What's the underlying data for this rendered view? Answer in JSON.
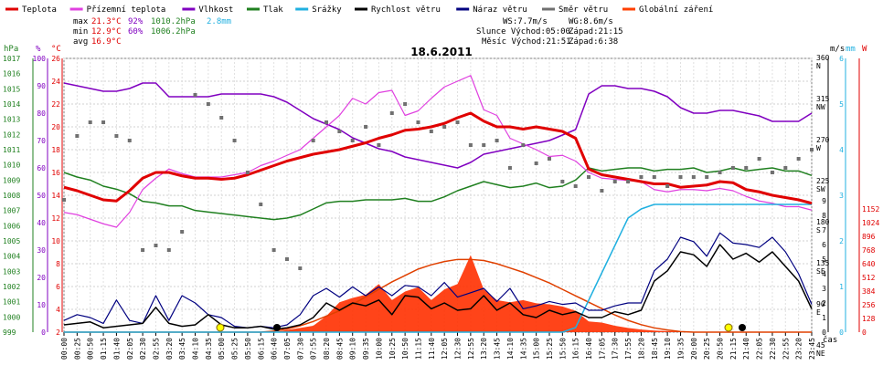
{
  "chart_data": {
    "type": "line",
    "title": "18.6.2011",
    "legend": [
      {
        "label": "Teplota",
        "color": "#e00000"
      },
      {
        "label": "Přízemní teplota",
        "color": "#e040e0"
      },
      {
        "label": "Vlhkost",
        "color": "#8000c0"
      },
      {
        "label": "Tlak",
        "color": "#208020"
      },
      {
        "label": "Srážky",
        "color": "#20b0e0"
      },
      {
        "label": "Rychlost větru",
        "color": "#000000"
      },
      {
        "label": "Náraz větru",
        "color": "#000080"
      },
      {
        "label": "Směr větru",
        "color": "#707070"
      },
      {
        "label": "Globální záření",
        "color": "#ff4000"
      }
    ],
    "stats": {
      "max_label": "max",
      "max_temp": "21.3°C",
      "max_hum": "92%",
      "max_press": "1010.2hPa",
      "rain_total": "2.8mm",
      "min_label": "min",
      "min_temp": "12.9°C",
      "min_hum": "60%",
      "min_press": "1006.2hPa",
      "avg_label": "avg",
      "avg_temp": "16.9°C",
      "ws": "WS:7.7m/s",
      "wg": "WG:8.6m/s",
      "sun": "Slunce Východ:05:00",
      "sun_set": "Západ:21:15",
      "moon": "Měsíc Východ:21:51",
      "moon_set": "Západ:6:38"
    },
    "axis_units": {
      "hpa": "hPa",
      "pct": "%",
      "degc": "°C",
      "ms": "m/s",
      "mm": "mm",
      "w": "W",
      "cas": "čas"
    },
    "ylim_temp": [
      2,
      26
    ],
    "temp_ticks": [
      "26",
      "24",
      "22",
      "20",
      "18",
      "16",
      "14",
      "12",
      "10",
      "8",
      "6",
      "4",
      "2"
    ],
    "hum_ticks": [
      "100",
      "90",
      "80",
      "70",
      "60",
      "50",
      "40",
      "30",
      "20",
      "10",
      "0"
    ],
    "press_ticks": [
      "1017",
      "1016",
      "1015",
      "1014",
      "1013",
      "1012",
      "1011",
      "1010",
      "1009",
      "1008",
      "1007",
      "1006",
      "1005",
      "1004",
      "1003",
      "1002",
      "1001",
      "1000",
      "999"
    ],
    "ms_ticks": [
      "9",
      "8",
      "7",
      "6",
      "5",
      "4",
      "3",
      "2",
      "1",
      "0"
    ],
    "mm_ticks": [
      "6",
      "5",
      "4",
      "3",
      "2",
      "1",
      "0"
    ],
    "w_ticks": [
      "1152",
      "1024",
      "896",
      "768",
      "640",
      "512",
      "384",
      "256",
      "128",
      "0"
    ],
    "dir_ticks": [
      "360\nN",
      "315\nNW",
      "270\nW",
      "225\nSW",
      "180\nS",
      "135\nSE",
      "90\nE",
      "45\nNE"
    ],
    "x_ticks": [
      "00:00",
      "00:25",
      "00:50",
      "01:15",
      "01:40",
      "02:05",
      "02:30",
      "02:55",
      "03:20",
      "03:45",
      "04:10",
      "04:35",
      "05:00",
      "05:25",
      "05:50",
      "06:15",
      "06:40",
      "07:05",
      "07:30",
      "07:55",
      "08:20",
      "08:45",
      "09:10",
      "09:35",
      "10:00",
      "10:25",
      "10:50",
      "11:15",
      "11:40",
      "12:05",
      "12:30",
      "12:55",
      "13:20",
      "13:45",
      "14:10",
      "14:35",
      "15:00",
      "15:25",
      "15:50",
      "16:15",
      "16:40",
      "17:05",
      "17:30",
      "17:55",
      "18:20",
      "18:45",
      "19:10",
      "19:35",
      "20:00",
      "20:25",
      "20:50",
      "21:15",
      "21:40",
      "22:05",
      "22:30",
      "22:55",
      "23:20",
      "23:45"
    ],
    "series": [
      {
        "name": "Teplota",
        "unit": "°C",
        "values": [
          14.7,
          14.4,
          14.0,
          13.6,
          13.5,
          14.4,
          15.5,
          16.0,
          16.0,
          15.7,
          15.5,
          15.5,
          15.4,
          15.5,
          15.8,
          16.2,
          16.6,
          17.0,
          17.3,
          17.6,
          17.8,
          18.0,
          18.3,
          18.6,
          19.0,
          19.3,
          19.7,
          19.8,
          20.0,
          20.3,
          20.8,
          21.2,
          20.5,
          20.0,
          20.0,
          19.8,
          20.0,
          19.8,
          19.6,
          19.0,
          16.3,
          15.8,
          15.6,
          15.4,
          15.2,
          15.0,
          15.0,
          14.7,
          14.8,
          14.9,
          15.2,
          15.1,
          14.5,
          14.3,
          14.0,
          13.8,
          13.6,
          13.3
        ]
      },
      {
        "name": "Přízemní teplota",
        "unit": "°C",
        "values": [
          12.5,
          12.3,
          11.9,
          11.5,
          11.2,
          12.5,
          14.5,
          15.5,
          16.3,
          15.9,
          15.6,
          15.6,
          15.6,
          15.8,
          16.0,
          16.6,
          17.0,
          17.5,
          18.0,
          19.0,
          20.0,
          21.0,
          22.5,
          22.0,
          23.0,
          23.2,
          21.0,
          21.4,
          22.5,
          23.5,
          24.0,
          24.5,
          21.5,
          21.0,
          19.0,
          18.5,
          18.0,
          17.4,
          17.5,
          17.0,
          16.0,
          15.5,
          15.4,
          15.3,
          15.2,
          14.5,
          14.3,
          14.5,
          14.5,
          14.4,
          14.6,
          14.4,
          13.9,
          13.5,
          13.3,
          13.0,
          13.0,
          12.7
        ]
      },
      {
        "name": "Vlhkost",
        "unit": "%",
        "values": [
          91,
          90,
          89,
          88,
          88,
          89,
          91,
          91,
          86,
          86,
          86,
          86,
          87,
          87,
          87,
          87,
          86,
          84,
          81,
          78,
          76,
          74,
          71,
          69,
          67,
          66,
          64,
          63,
          62,
          61,
          60,
          62,
          65,
          66,
          67,
          68,
          69,
          70,
          72,
          74,
          87,
          90,
          90,
          89,
          89,
          88,
          86,
          82,
          80,
          80,
          81,
          81,
          80,
          79,
          77,
          77,
          77,
          80
        ]
      },
      {
        "name": "Tlak",
        "unit": "hPa",
        "values": [
          1009.5,
          1009.2,
          1009.0,
          1008.6,
          1008.4,
          1008.1,
          1007.6,
          1007.5,
          1007.3,
          1007.3,
          1007.0,
          1006.9,
          1006.8,
          1006.7,
          1006.6,
          1006.5,
          1006.4,
          1006.5,
          1006.7,
          1007.1,
          1007.5,
          1007.6,
          1007.6,
          1007.7,
          1007.7,
          1007.7,
          1007.8,
          1007.6,
          1007.6,
          1007.9,
          1008.3,
          1008.6,
          1008.9,
          1008.7,
          1008.5,
          1008.6,
          1008.8,
          1008.5,
          1008.6,
          1009.0,
          1009.8,
          1009.6,
          1009.7,
          1009.8,
          1009.8,
          1009.6,
          1009.7,
          1009.7,
          1009.8,
          1009.5,
          1009.6,
          1009.8,
          1009.6,
          1009.7,
          1009.8,
          1009.6,
          1009.6,
          1009.3
        ]
      },
      {
        "name": "Srážky",
        "unit": "mm",
        "values": [
          0,
          0,
          0,
          0,
          0,
          0,
          0,
          0,
          0,
          0,
          0,
          0,
          0,
          0,
          0,
          0,
          0,
          0,
          0,
          0,
          0,
          0,
          0,
          0,
          0,
          0,
          0,
          0,
          0,
          0,
          0,
          0,
          0,
          0,
          0,
          0,
          0,
          0,
          0,
          0.1,
          0.7,
          1.3,
          1.9,
          2.5,
          2.7,
          2.8,
          2.8,
          2.8,
          2.8,
          2.8,
          2.8,
          2.8,
          2.8,
          2.8,
          2.8,
          2.8,
          2.8,
          2.8
        ]
      },
      {
        "name": "Rychlost větru",
        "unit": "m/s",
        "values": [
          0.5,
          0.6,
          0.7,
          0.3,
          0.4,
          0.5,
          0.6,
          1.7,
          0.6,
          0.4,
          0.5,
          1.2,
          0.5,
          0.3,
          0.3,
          0.4,
          0.2,
          0.3,
          0.5,
          1.0,
          2.0,
          1.5,
          2.0,
          1.8,
          2.2,
          1.2,
          2.5,
          2.4,
          1.6,
          2.0,
          1.5,
          1.6,
          2.5,
          1.5,
          2.0,
          1.2,
          1.0,
          1.5,
          1.2,
          1.4,
          1.0,
          1.0,
          1.4,
          1.2,
          1.5,
          3.5,
          4.2,
          5.5,
          5.3,
          4.5,
          6.0,
          5.0,
          5.4,
          4.8,
          5.5,
          4.5,
          3.5,
          1.6
        ]
      },
      {
        "name": "Náraz větru",
        "unit": "m/s",
        "values": [
          0.8,
          1.2,
          1.0,
          0.6,
          2.2,
          0.8,
          0.6,
          2.5,
          0.8,
          2.5,
          2.0,
          1.2,
          1.0,
          0.4,
          0.3,
          0.4,
          0.3,
          0.5,
          1.2,
          2.5,
          3.0,
          2.4,
          3.1,
          2.5,
          3.1,
          2.5,
          3.2,
          3.1,
          2.5,
          3.4,
          2.4,
          2.7,
          3.0,
          2.1,
          3.0,
          1.6,
          1.8,
          2.1,
          1.9,
          2.0,
          1.5,
          1.5,
          1.8,
          2.0,
          2.0,
          4.2,
          5.0,
          6.5,
          6.2,
          5.2,
          6.8,
          6.1,
          6.0,
          5.8,
          6.5,
          5.5,
          4.0,
          1.9
        ]
      },
      {
        "name": "Směr větru",
        "unit": "°",
        "values": [
          205,
          275,
          290,
          290,
          275,
          270,
          150,
          155,
          150,
          170,
          320,
          310,
          295,
          270,
          235,
          200,
          150,
          140,
          130,
          270,
          290,
          280,
          270,
          285,
          265,
          300,
          310,
          290,
          280,
          285,
          290,
          265,
          265,
          270,
          240,
          265,
          245,
          250,
          225,
          220,
          230,
          215,
          225,
          225,
          230,
          230,
          220,
          230,
          230,
          230,
          235,
          240,
          240,
          250,
          235,
          240,
          250,
          260
        ]
      },
      {
        "name": "Globální záření",
        "unit": "W",
        "values": [
          0,
          0,
          0,
          0,
          0,
          0,
          0,
          0,
          0,
          0,
          0,
          0,
          0,
          0,
          0,
          0,
          0,
          20,
          40,
          60,
          150,
          280,
          320,
          350,
          450,
          300,
          380,
          420,
          300,
          400,
          450,
          720,
          400,
          300,
          280,
          300,
          270,
          260,
          240,
          200,
          100,
          90,
          60,
          40,
          25,
          15,
          10,
          5,
          0,
          0,
          0,
          0,
          0,
          0,
          0,
          0,
          0,
          0
        ]
      },
      {
        "name": "Globální záření max",
        "unit": "W",
        "values": [
          0,
          0,
          0,
          0,
          0,
          0,
          0,
          0,
          0,
          0,
          0,
          0,
          0,
          0,
          0,
          0,
          10,
          30,
          60,
          100,
          150,
          200,
          260,
          330,
          400,
          470,
          530,
          590,
          630,
          660,
          680,
          680,
          670,
          640,
          600,
          560,
          510,
          460,
          400,
          340,
          280,
          220,
          160,
          110,
          70,
          40,
          20,
          5,
          0,
          0,
          0,
          0,
          0,
          0,
          0,
          0,
          0,
          0
        ]
      }
    ]
  }
}
